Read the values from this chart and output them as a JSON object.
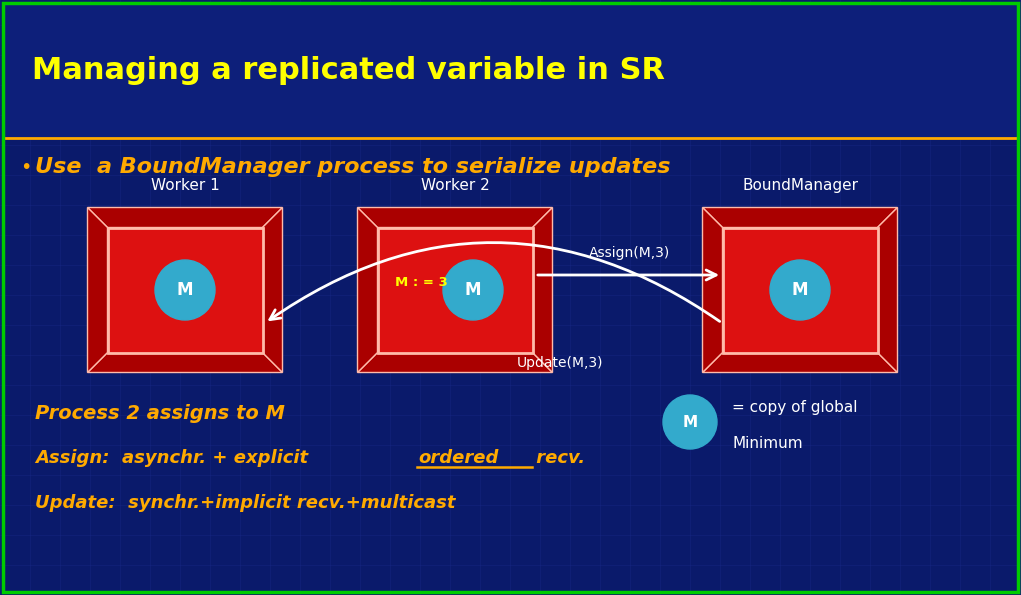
{
  "bg_color": "#0a1a6b",
  "title": "Managing a replicated variable in SR",
  "title_color": "#ffff00",
  "title_fontsize": 22,
  "subtitle": "Use  a BoundManager process to serialize updates",
  "subtitle_color": "#ffaa00",
  "subtitle_fontsize": 16,
  "bullet_color": "#ffaa00",
  "header_line_color": "#ffaa00",
  "worker1_label": "Worker 1",
  "worker2_label": "Worker 2",
  "bm_label": "BoundManager",
  "box_inner_color": "#dd1111",
  "box_3d_color": "#aa0000",
  "box_border_color": "#ffbbaa",
  "circle_color": "#33aacc",
  "circle_text": "M",
  "circle_text_color": "#ffffff",
  "assign_label": "Assign(M,3)",
  "update_label": "Update(M,3)",
  "assign_text": "M : = 3",
  "arrow_color": "#ffffff",
  "label_color": "#ffffff",
  "bottom_text1": "Process 2 assigns to M",
  "bottom_text2": "Assign:  asynchr. + explicit ",
  "bottom_text2b": "ordered",
  "bottom_text2c": " recv.",
  "bottom_text3": "Update:  synchr.+implicit recv.+multicast",
  "bottom_text_color": "#ffaa00",
  "legend_circle_color": "#33aacc",
  "legend_text1": "= copy of global",
  "legend_text2": "Minimum",
  "legend_text_color": "#ffffff",
  "grid_color": "#1a2a8b",
  "outer_border_color": "#00cc00"
}
